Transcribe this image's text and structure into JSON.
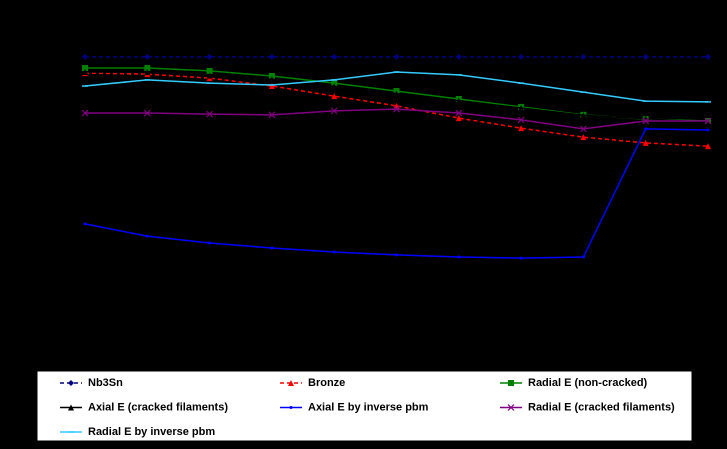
{
  "chart_data": {
    "type": "line",
    "categories": [
      null,
      null,
      null,
      null,
      null,
      null,
      null,
      null,
      null,
      null,
      null
    ],
    "ylim": [
      0,
      100
    ],
    "series": [
      {
        "name": "Nb3Sn",
        "color": "#000080",
        "dash": true,
        "marker": "diamond",
        "values": [
          84.2,
          84.2,
          84.2,
          84.2,
          84.2,
          84.2,
          84.2,
          84.2,
          84.2,
          84.2,
          84.2
        ]
      },
      {
        "name": "Bronze",
        "color": "#ff0000",
        "dash": true,
        "marker": "triangle",
        "values": [
          79.7,
          79.4,
          78.3,
          76.1,
          73.3,
          70.6,
          67.2,
          64.4,
          61.9,
          60.3,
          59.4
        ]
      },
      {
        "name": "Radial E (non-cracked)",
        "color": "#008000",
        "dash": false,
        "marker": "square",
        "values": [
          81.1,
          81.1,
          80.3,
          78.9,
          76.9,
          74.7,
          72.5,
          70.3,
          68.1,
          66.9,
          66.4
        ]
      },
      {
        "name": "Axial E (cracked filaments)",
        "color": "#000000",
        "dash": false,
        "marker": "triangle",
        "values": [
          80,
          80,
          79,
          78,
          76,
          74,
          72,
          70,
          68,
          67,
          66
        ]
      },
      {
        "name": "Axial E by inverse pbm",
        "color": "#0000ff",
        "dash": false,
        "marker": "dot",
        "values": [
          37.8,
          34.4,
          32.5,
          31.1,
          30.0,
          29.2,
          28.6,
          28.3,
          28.6,
          64.2,
          63.9
        ]
      },
      {
        "name": "Radial E (cracked filaments)",
        "color": "#800080",
        "dash": false,
        "marker": "cross",
        "values": [
          68.6,
          68.6,
          68.3,
          68.1,
          69.2,
          69.7,
          68.6,
          66.7,
          64.2,
          66.4,
          66.4
        ]
      },
      {
        "name": "Radial E by inverse pbm",
        "color": "#33ccff",
        "dash": false,
        "marker": "dash",
        "values": [
          76.1,
          77.8,
          76.9,
          76.4,
          77.8,
          80,
          79.2,
          76.9,
          74.4,
          71.9,
          71.7
        ]
      }
    ]
  }
}
